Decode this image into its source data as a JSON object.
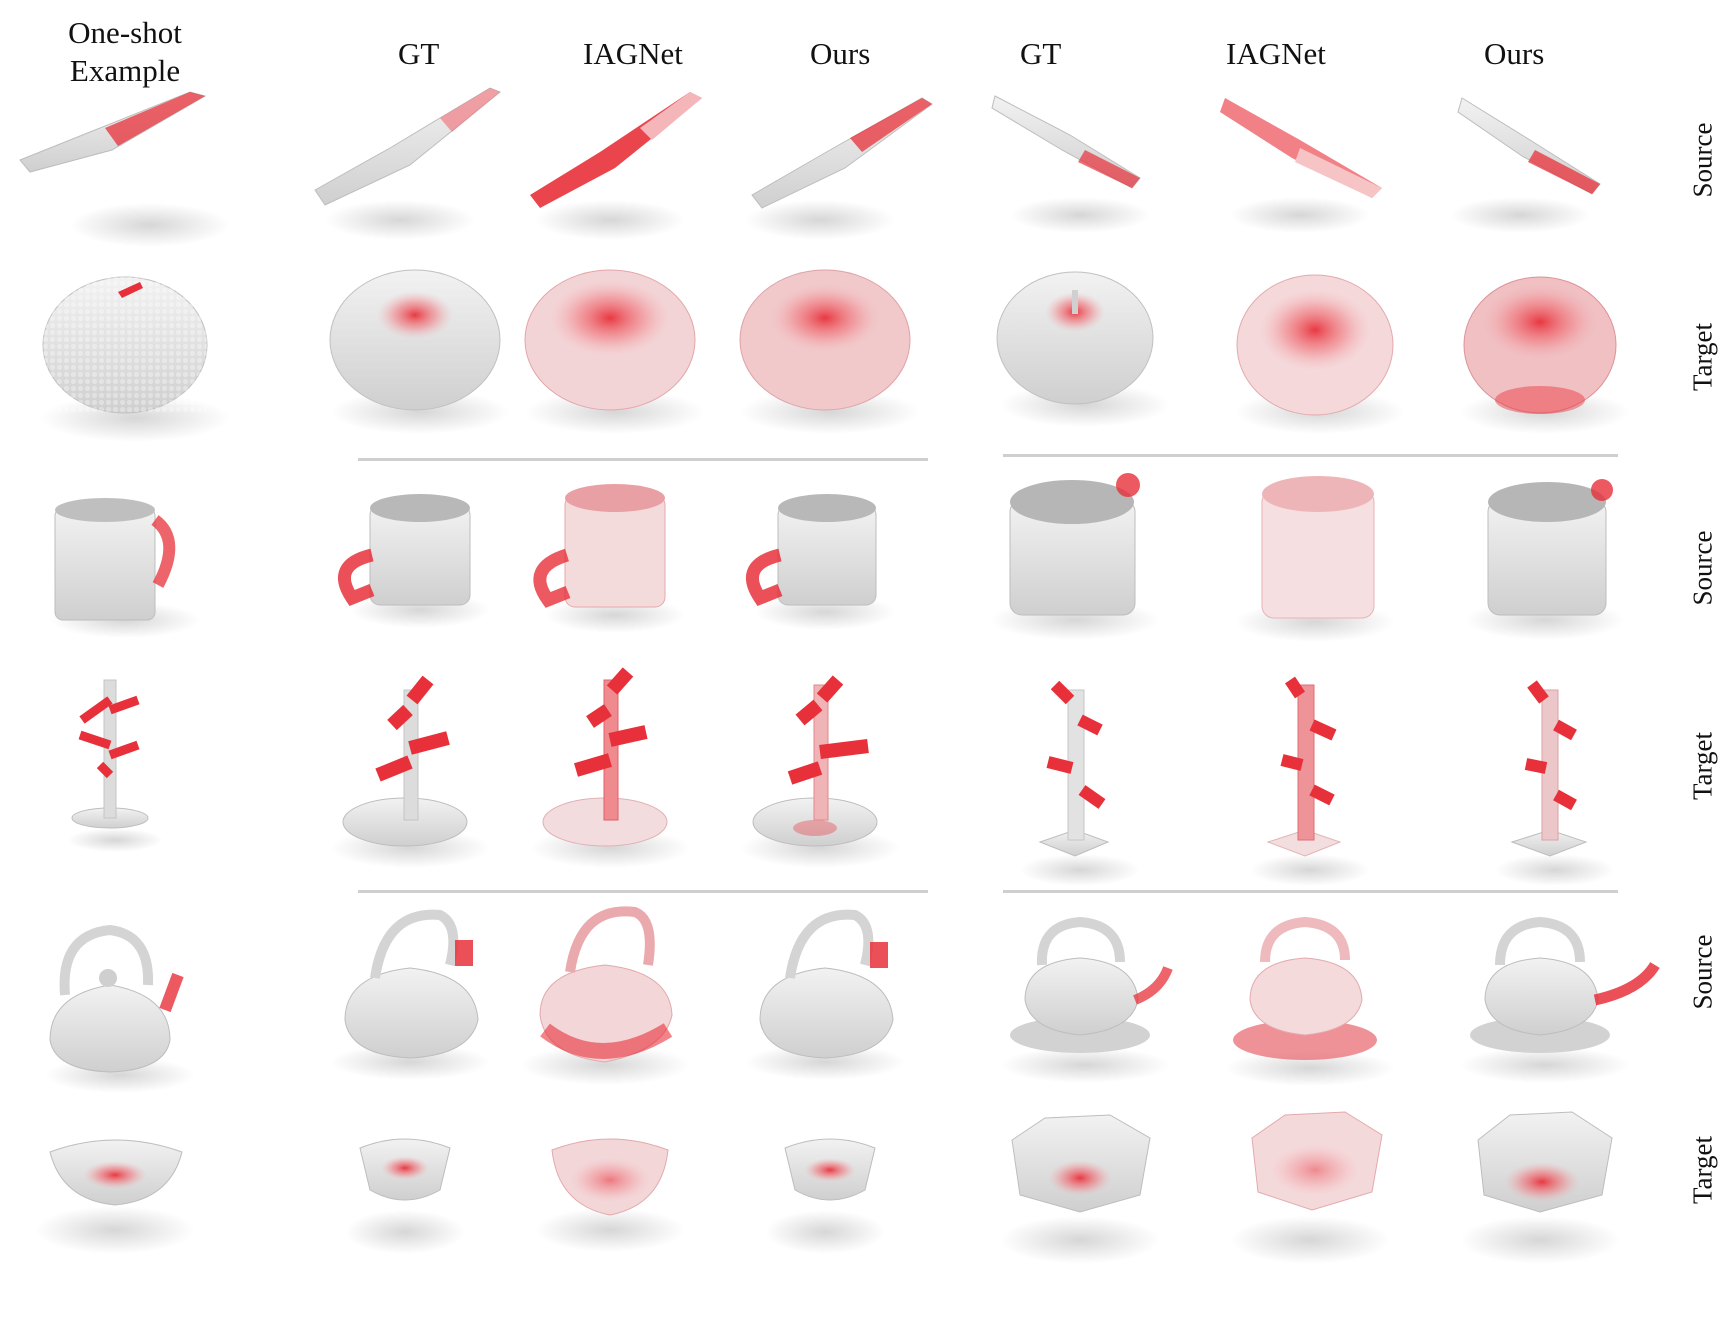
{
  "header": {
    "oneshot": "One-shot Example",
    "oneshot_line1": "One-shot",
    "oneshot_line2": "Example",
    "left_group": [
      "GT",
      "IAGNet",
      "Ours"
    ],
    "right_group": [
      "GT",
      "IAGNet",
      "Ours"
    ]
  },
  "row_labels": [
    "Source",
    "Target",
    "Source",
    "Target",
    "Source",
    "Target"
  ],
  "rows": [
    {
      "object": "knife",
      "role": "Source"
    },
    {
      "object": "apple",
      "role": "Target"
    },
    {
      "object": "mug",
      "role": "Source"
    },
    {
      "object": "mug-tree",
      "role": "Target"
    },
    {
      "object": "kettle",
      "role": "Source"
    },
    {
      "object": "bowl",
      "role": "Target"
    }
  ],
  "colors": {
    "highlight": "#e8303a",
    "point": "#dcdcdc",
    "point_dark": "#b8b8b8",
    "separator": "#cfcfcf"
  }
}
